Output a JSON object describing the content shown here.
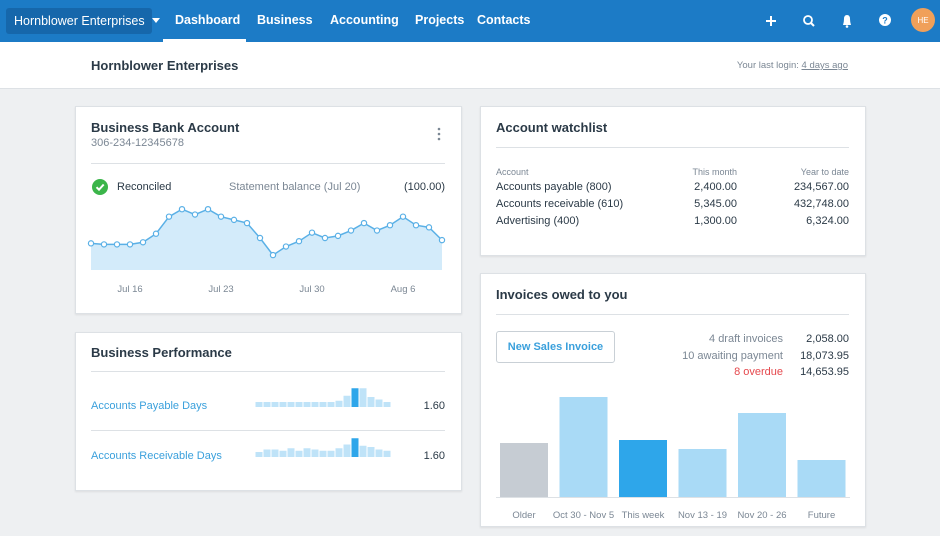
{
  "nav": {
    "org": "Hornblower Enterprises",
    "items": [
      "Dashboard",
      "Business",
      "Accounting",
      "Projects",
      "Contacts"
    ],
    "avatar": "HE"
  },
  "header": {
    "title": "Hornblower Enterprises",
    "last_login_label": "Your last login:",
    "last_login_link": "4 days ago"
  },
  "bank_account": {
    "title": "Business Bank Account",
    "number": "306-234-12345678",
    "status": "Reconciled",
    "statement_label": "Statement balance (Jul 20)",
    "statement_value": "(100.00)",
    "chart": {
      "type": "area",
      "categories": [
        null,
        null,
        null,
        "Jul 16",
        null,
        null,
        null,
        null,
        null,
        null,
        "Jul 23",
        null,
        null,
        null,
        null,
        null,
        null,
        "Jul 30",
        null,
        null,
        null,
        null,
        null,
        null,
        "Aug 6",
        null,
        null,
        null
      ],
      "values": [
        25,
        24,
        24,
        24,
        26,
        34,
        50,
        57,
        52,
        57,
        50,
        47,
        44,
        30,
        14,
        22,
        27,
        35,
        30,
        32,
        37,
        44,
        37,
        42,
        50,
        42,
        40,
        28
      ],
      "ylim": [
        0,
        60
      ],
      "color": "#5ab0e6"
    }
  },
  "performance": {
    "title": "Business Performance",
    "rows": [
      {
        "label": "Accounts Payable Days",
        "value": "1.60",
        "chart": {
          "type": "bar",
          "values": [
            4,
            4,
            4,
            4,
            4,
            4,
            4,
            4,
            4,
            4,
            5,
            9,
            15,
            15,
            8,
            6,
            4
          ],
          "highlight": 12,
          "ylim": [
            0,
            16
          ]
        }
      },
      {
        "label": "Accounts Receivable Days",
        "value": "1.60",
        "chart": {
          "type": "bar",
          "values": [
            4,
            6,
            6,
            5,
            7,
            5,
            7,
            6,
            5,
            5,
            7,
            10,
            15,
            9,
            8,
            6,
            5
          ],
          "highlight": 12,
          "ylim": [
            0,
            16
          ]
        }
      }
    ]
  },
  "watchlist": {
    "title": "Account watchlist",
    "columns": [
      "Account",
      "This month",
      "Year to date"
    ],
    "rows": [
      [
        "Accounts payable (800)",
        "2,400.00",
        "234,567.00"
      ],
      [
        "Accounts receivable (610)",
        "5,345.00",
        "432,748.00"
      ],
      [
        "Advertising (400)",
        "1,300.00",
        "6,324.00"
      ]
    ]
  },
  "invoices": {
    "title": "Invoices owed to you",
    "button": "New Sales Invoice",
    "summary": [
      {
        "label": "4 draft invoices",
        "value": "2,058.00"
      },
      {
        "label": "10 awaiting payment",
        "value": "18,073.95"
      },
      {
        "label": "8 overdue",
        "value": "14,653.95",
        "color": "#e5484d"
      }
    ],
    "chart_data": {
      "type": "bar",
      "categories": [
        "Older",
        "Oct 30 - Nov 5",
        "This week",
        "Nov 13 - 19",
        "Nov 20 - 26",
        "Future"
      ],
      "values": [
        54,
        100,
        57,
        48,
        84,
        37
      ],
      "colors": [
        "#c6ccd3",
        "#a9daf6",
        "#2ea6ea",
        "#a9daf6",
        "#a9daf6",
        "#a9daf6"
      ],
      "ylim": [
        0,
        100
      ]
    }
  }
}
